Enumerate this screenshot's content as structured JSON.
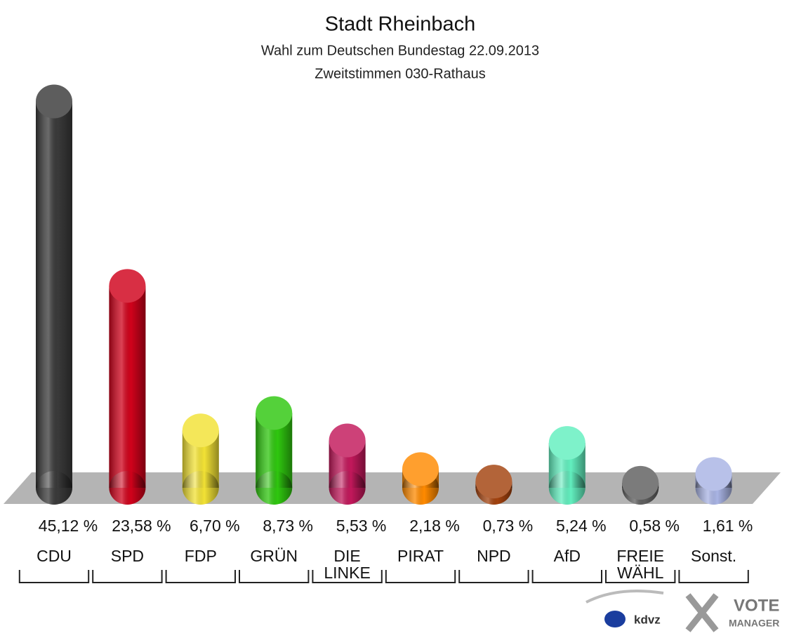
{
  "chart_data": {
    "type": "bar",
    "title": "Stadt Rheinbach",
    "subtitle": "Wahl zum Deutschen Bundestag 22.09.2013",
    "subtitle2": "Zweitstimmen 030-Rathaus",
    "categories": [
      "CDU",
      "SPD",
      "FDP",
      "GRÜN",
      "DIE LINKE",
      "PIRAT",
      "NPD",
      "AfD",
      "FREIE WÄHL",
      "Sonst."
    ],
    "values": [
      45.12,
      23.58,
      6.7,
      8.73,
      5.53,
      2.18,
      0.73,
      5.24,
      0.58,
      1.61
    ],
    "value_labels": [
      "45,12 %",
      "23,58 %",
      "6,70 %",
      "8,73 %",
      "5,53 %",
      "2,18 %",
      "0,73 %",
      "5,24 %",
      "0,58 %",
      "1,61 %"
    ],
    "colors": [
      "#3a3a3a",
      "#d0021b",
      "#f2e235",
      "#2fc70f",
      "#c2185b",
      "#ff8a00",
      "#a3420e",
      "#62efbf",
      "#5f5f5f",
      "#a9b4e4"
    ],
    "logo": {
      "kdvz": "kdvz",
      "vote": "VOTE",
      "manager": "MANAGER"
    }
  }
}
